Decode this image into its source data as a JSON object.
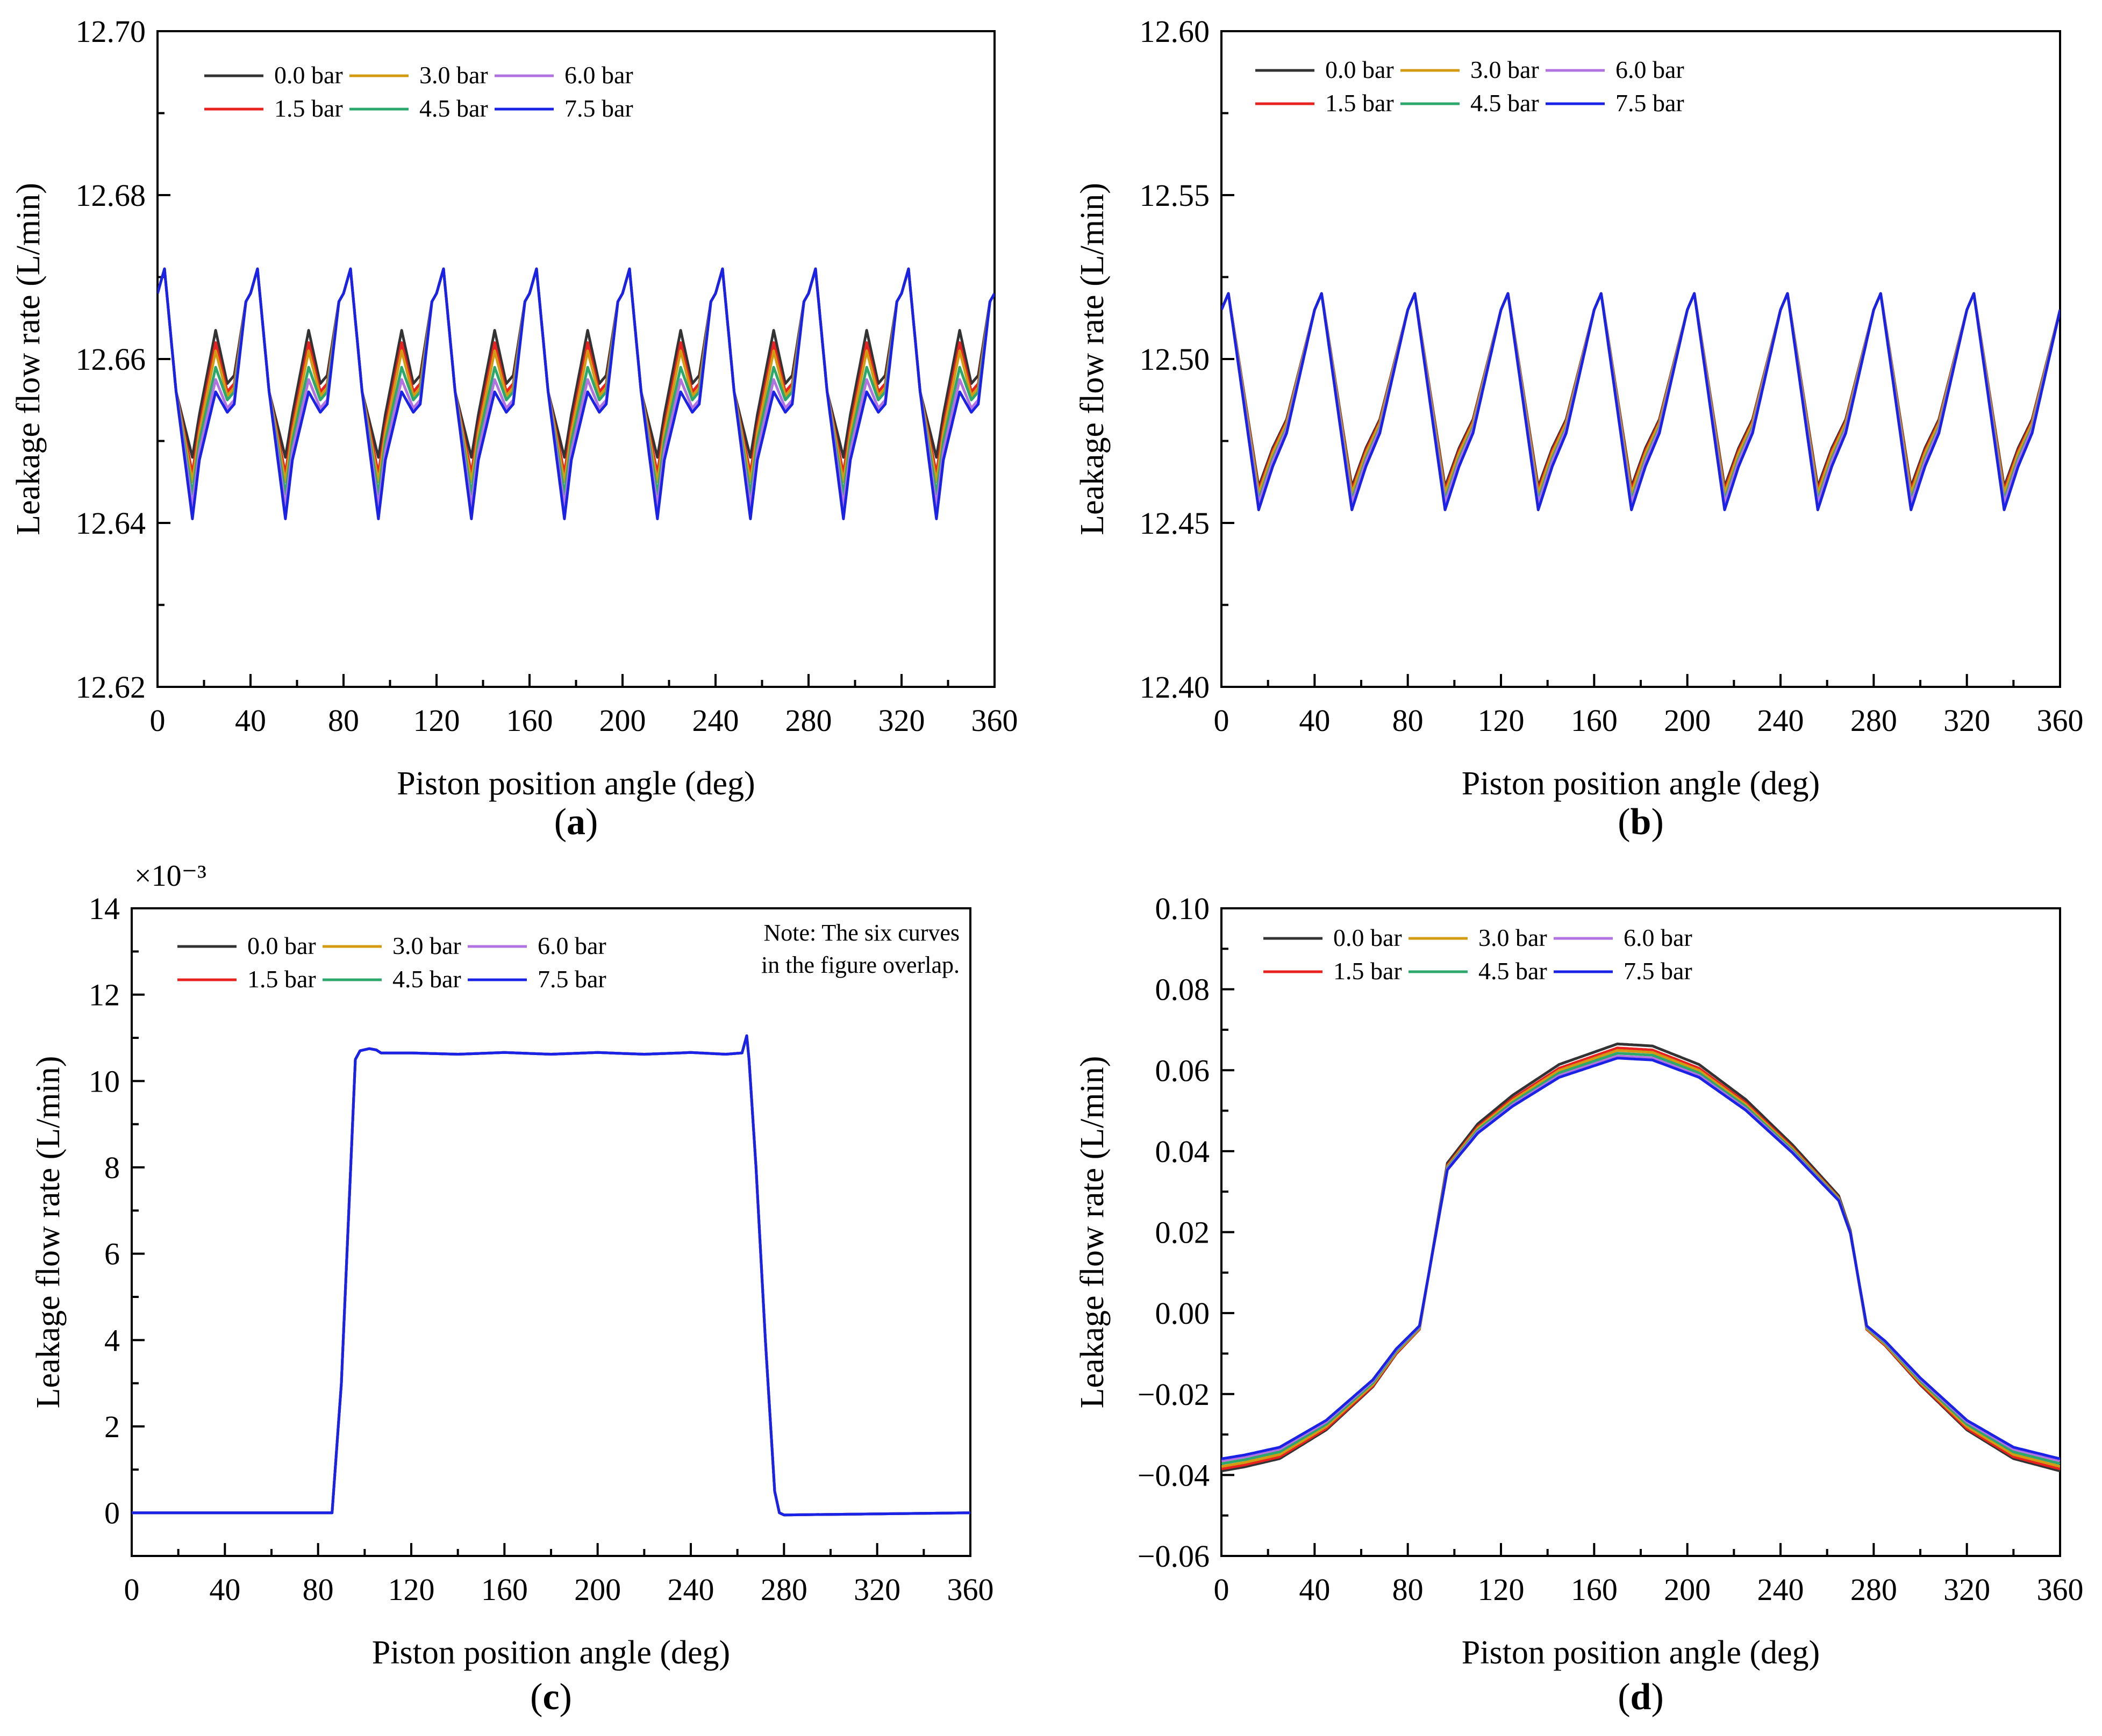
{
  "chart_data": [
    {
      "type": "line",
      "panel_label": "a",
      "xlabel": "Piston position angle (deg)",
      "ylabel": "Leakage flow rate (L/min)",
      "xlim": [
        0,
        360
      ],
      "ylim": [
        12.62,
        12.7
      ],
      "xticks": [
        0,
        40,
        80,
        120,
        160,
        200,
        240,
        280,
        320,
        360
      ],
      "yticks": [
        12.62,
        12.64,
        12.66,
        12.68,
        12.7
      ],
      "ytick_labels": [
        "12.62",
        "12.64",
        "12.66",
        "12.68",
        "12.70"
      ],
      "legend_position": "top-left",
      "grid": false,
      "period_deg": 40,
      "profile_angles": [
        0,
        3,
        8,
        15,
        18,
        25,
        30,
        33,
        38,
        40
      ],
      "profile_values": [
        12.668,
        12.671,
        12.656,
        12.645,
        12.651,
        12.662,
        12.656,
        12.657,
        12.667,
        12.668
      ],
      "series": [
        {
          "name": "0.0 bar",
          "color": "#333333",
          "min": 12.648,
          "valley2": 12.657,
          "peak2": 12.6635
        },
        {
          "name": "1.5 bar",
          "color": "#e8221f",
          "min": 12.646,
          "valley2": 12.656,
          "peak2": 12.662
        },
        {
          "name": "3.0 bar",
          "color": "#d39b11",
          "min": 12.645,
          "valley2": 12.6555,
          "peak2": 12.661
        },
        {
          "name": "4.5 bar",
          "color": "#2ca86c",
          "min": 12.6435,
          "valley2": 12.655,
          "peak2": 12.659
        },
        {
          "name": "6.0 bar",
          "color": "#b173e0",
          "min": 12.642,
          "valley2": 12.654,
          "peak2": 12.6575
        },
        {
          "name": "7.5 bar",
          "color": "#1a22e6",
          "min": 12.6405,
          "valley2": 12.6535,
          "peak2": 12.656
        }
      ]
    },
    {
      "type": "line",
      "panel_label": "b",
      "xlabel": "Piston position angle (deg)",
      "ylabel": "Leakage flow rate (L/min)",
      "xlim": [
        0,
        360
      ],
      "ylim": [
        12.4,
        12.6
      ],
      "xticks": [
        0,
        40,
        80,
        120,
        160,
        200,
        240,
        280,
        320,
        360
      ],
      "yticks": [
        12.4,
        12.45,
        12.5,
        12.55,
        12.6
      ],
      "ytick_labels": [
        "12.40",
        "12.45",
        "12.50",
        "12.55",
        "12.60"
      ],
      "legend_position": "top-left",
      "grid": false,
      "period_deg": 40,
      "profile_angles": [
        0,
        3,
        16,
        22,
        28,
        40
      ],
      "profile_values": [
        12.515,
        12.52,
        12.455,
        12.468,
        12.478,
        12.515
      ],
      "series": [
        {
          "name": "0.0 bar",
          "color": "#333333",
          "min": 12.461
        },
        {
          "name": "1.5 bar",
          "color": "#e8221f",
          "min": 12.46
        },
        {
          "name": "3.0 bar",
          "color": "#d39b11",
          "min": 12.459
        },
        {
          "name": "4.5 bar",
          "color": "#2ca86c",
          "min": 12.457
        },
        {
          "name": "6.0 bar",
          "color": "#b173e0",
          "min": 12.456
        },
        {
          "name": "7.5 bar",
          "color": "#1a22e6",
          "min": 12.454
        }
      ]
    },
    {
      "type": "line",
      "panel_label": "c",
      "xlabel": "Piston position angle (deg)",
      "ylabel": "Leakage flow rate (L/min)",
      "xlim": [
        0,
        360
      ],
      "ylim": [
        -1,
        14
      ],
      "xticks": [
        0,
        40,
        80,
        120,
        160,
        200,
        240,
        280,
        320,
        360
      ],
      "yticks": [
        0,
        2,
        4,
        6,
        8,
        10,
        12,
        14
      ],
      "ytick_labels": [
        "0",
        "2",
        "4",
        "6",
        "8",
        "10",
        "12",
        "14"
      ],
      "scale_label": "×10⁻³",
      "note_line1": "Note: The six curves",
      "note_line2": "in the figure overlap.",
      "legend_position": "top-left",
      "grid": false,
      "x": [
        0,
        84,
        86,
        90,
        96,
        98,
        102,
        105,
        107,
        120,
        140,
        160,
        180,
        200,
        220,
        240,
        255,
        262,
        264,
        265,
        268,
        272,
        276,
        278,
        280,
        360
      ],
      "y": [
        0,
        0,
        0,
        3,
        10.5,
        10.7,
        10.75,
        10.72,
        10.65,
        10.65,
        10.62,
        10.66,
        10.62,
        10.66,
        10.62,
        10.66,
        10.62,
        10.65,
        11.05,
        10.5,
        8,
        4,
        0.5,
        0,
        -0.05,
        0
      ],
      "series": [
        {
          "name": "0.0 bar",
          "color": "#333333"
        },
        {
          "name": "1.5 bar",
          "color": "#e8221f"
        },
        {
          "name": "3.0 bar",
          "color": "#d39b11"
        },
        {
          "name": "4.5 bar",
          "color": "#2ca86c"
        },
        {
          "name": "6.0 bar",
          "color": "#b173e0"
        },
        {
          "name": "7.5 bar",
          "color": "#1a22e6"
        }
      ]
    },
    {
      "type": "line",
      "panel_label": "d",
      "xlabel": "Piston position angle (deg)",
      "ylabel": "Leakage flow rate (L/min)",
      "xlim": [
        0,
        360
      ],
      "ylim": [
        -0.06,
        0.1
      ],
      "xticks": [
        0,
        40,
        80,
        120,
        160,
        200,
        240,
        280,
        320,
        360
      ],
      "yticks": [
        -0.06,
        -0.04,
        -0.02,
        0.0,
        0.02,
        0.04,
        0.06,
        0.08,
        0.1
      ],
      "ytick_labels": [
        "−0.06",
        "−0.04",
        "−0.02",
        "0.00",
        "0.02",
        "0.04",
        "0.06",
        "0.08",
        "0.10"
      ],
      "legend_position": "top-left",
      "grid": false,
      "x": [
        0,
        10,
        25,
        45,
        65,
        75,
        85,
        97,
        110,
        125,
        145,
        170,
        185,
        205,
        225,
        245,
        265,
        270,
        277,
        285,
        300,
        320,
        340,
        360
      ],
      "base": [
        -0.0385,
        -0.0375,
        -0.0355,
        -0.0285,
        -0.018,
        -0.01,
        -0.004,
        0.0365,
        0.046,
        0.053,
        0.0605,
        0.0655,
        0.065,
        0.0605,
        0.052,
        0.041,
        0.0285,
        0.02,
        -0.004,
        -0.008,
        -0.0175,
        -0.0285,
        -0.0355,
        -0.0385
      ],
      "series": [
        {
          "name": "0.0 bar",
          "color": "#333333",
          "edge_offset": -0.0005,
          "peak_offset": 0.001
        },
        {
          "name": "1.5 bar",
          "color": "#e8221f",
          "edge_offset": 0.0,
          "peak_offset": 0.0
        },
        {
          "name": "3.0 bar",
          "color": "#d39b11",
          "edge_offset": 0.0006,
          "peak_offset": -0.0006
        },
        {
          "name": "4.5 bar",
          "color": "#2ca86c",
          "edge_offset": 0.0013,
          "peak_offset": -0.0013
        },
        {
          "name": "6.0 bar",
          "color": "#b173e0",
          "edge_offset": 0.002,
          "peak_offset": -0.002
        },
        {
          "name": "7.5 bar",
          "color": "#1a22e6",
          "edge_offset": 0.0025,
          "peak_offset": -0.0025
        }
      ]
    }
  ]
}
